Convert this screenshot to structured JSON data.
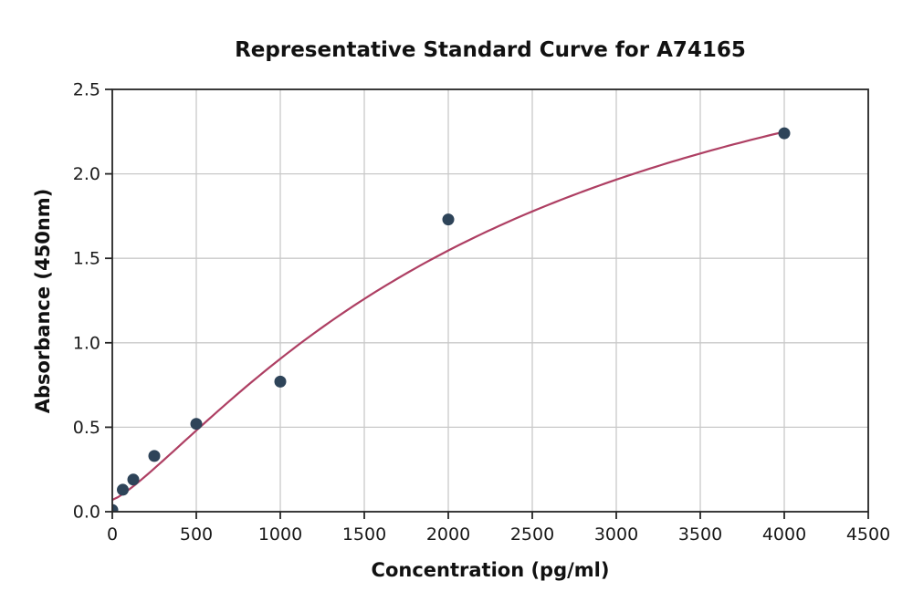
{
  "figure": {
    "background": "#ffffff"
  },
  "chart_data": {
    "type": "scatter",
    "title": "Representative Standard Curve for A74165",
    "xlabel": "Concentration (pg/ml)",
    "ylabel": "Absorbance (450nm)",
    "xlim": [
      0,
      4500
    ],
    "ylim": [
      0,
      2.5
    ],
    "x_ticks": [
      0,
      500,
      1000,
      1500,
      2000,
      2500,
      3000,
      3500,
      4000,
      4500
    ],
    "y_ticks": [
      0,
      0.5,
      1.0,
      1.5,
      2.0,
      2.5
    ],
    "y_tick_labels": [
      "0.0",
      "0.5",
      "1.0",
      "1.5",
      "2.0",
      "2.5"
    ],
    "grid": true,
    "legend_position": "none",
    "points": {
      "x": [
        0,
        62.5,
        125,
        250,
        500,
        1000,
        2000,
        4000
      ],
      "y": [
        0.01,
        0.13,
        0.19,
        0.33,
        0.52,
        0.77,
        1.73,
        2.24
      ]
    },
    "fit_curve": {
      "model": "4PL",
      "params": {
        "a": 0.07,
        "b": 1.25,
        "c": 2400,
        "d": 3.4
      },
      "x_range": [
        0,
        4000
      ]
    },
    "colors": {
      "point": "#2e4459",
      "curve": "#ae3f63",
      "grid": "#c9c9c9",
      "axis": "#262626",
      "tick_text": "#1a1a1a"
    }
  }
}
